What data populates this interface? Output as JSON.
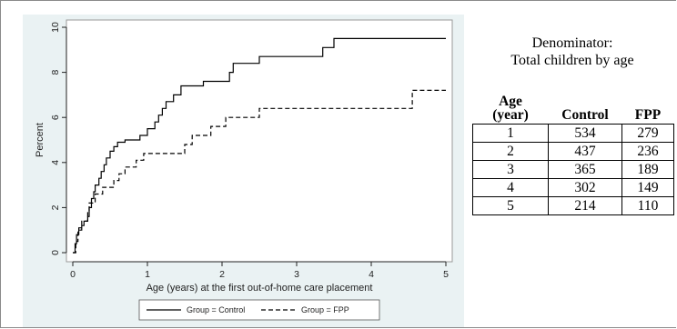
{
  "chart_data": {
    "type": "line",
    "xlabel": "Age (years) at the first out-of-home care placement",
    "ylabel": "Percent",
    "xlim": [
      0,
      5
    ],
    "ylim": [
      0,
      10
    ],
    "x_ticks": [
      0,
      1,
      2,
      3,
      4,
      5
    ],
    "y_ticks": [
      0,
      2,
      4,
      6,
      8,
      10
    ],
    "step": true,
    "grid": false,
    "legend_position": "bottom",
    "series": [
      {
        "name": "Group = Control",
        "line_style": "solid",
        "color": "#000000",
        "points": [
          [
            0,
            0
          ],
          [
            0.03,
            0.4
          ],
          [
            0.05,
            0.8
          ],
          [
            0.08,
            1.1
          ],
          [
            0.12,
            1.2
          ],
          [
            0.15,
            1.4
          ],
          [
            0.2,
            1.6
          ],
          [
            0.22,
            2.0
          ],
          [
            0.25,
            2.4
          ],
          [
            0.28,
            2.7
          ],
          [
            0.3,
            3.0
          ],
          [
            0.35,
            3.3
          ],
          [
            0.38,
            3.6
          ],
          [
            0.42,
            3.9
          ],
          [
            0.45,
            4.2
          ],
          [
            0.5,
            4.5
          ],
          [
            0.55,
            4.7
          ],
          [
            0.6,
            4.9
          ],
          [
            0.7,
            5.0
          ],
          [
            0.9,
            5.2
          ],
          [
            1.0,
            5.5
          ],
          [
            1.1,
            5.8
          ],
          [
            1.15,
            6.1
          ],
          [
            1.2,
            6.4
          ],
          [
            1.25,
            6.7
          ],
          [
            1.35,
            7.0
          ],
          [
            1.45,
            7.4
          ],
          [
            1.75,
            7.6
          ],
          [
            2.1,
            8.0
          ],
          [
            2.15,
            8.4
          ],
          [
            2.5,
            8.7
          ],
          [
            3.35,
            9.1
          ],
          [
            3.5,
            9.5
          ],
          [
            5.0,
            9.5
          ]
        ]
      },
      {
        "name": "Group = FPP",
        "line_style": "dashed",
        "color": "#000000",
        "points": [
          [
            0,
            0
          ],
          [
            0.04,
            0.5
          ],
          [
            0.07,
            1.0
          ],
          [
            0.12,
            1.4
          ],
          [
            0.2,
            1.8
          ],
          [
            0.22,
            2.2
          ],
          [
            0.3,
            2.6
          ],
          [
            0.4,
            2.9
          ],
          [
            0.55,
            3.2
          ],
          [
            0.62,
            3.5
          ],
          [
            0.7,
            3.8
          ],
          [
            0.85,
            4.1
          ],
          [
            0.95,
            4.4
          ],
          [
            1.5,
            4.8
          ],
          [
            1.6,
            5.2
          ],
          [
            1.85,
            5.6
          ],
          [
            2.05,
            6.0
          ],
          [
            2.5,
            6.4
          ],
          [
            4.55,
            7.2
          ],
          [
            5.0,
            7.2
          ]
        ]
      }
    ]
  },
  "denominator": {
    "line1": "Denominator:",
    "line2": "Total children by age"
  },
  "table": {
    "header": {
      "age_line1": "Age",
      "age_line2": "(year)",
      "control": "Control",
      "fpp": "FPP"
    },
    "rows": [
      {
        "age": "1",
        "control": "534",
        "fpp": "279"
      },
      {
        "age": "2",
        "control": "437",
        "fpp": "236"
      },
      {
        "age": "3",
        "control": "365",
        "fpp": "189"
      },
      {
        "age": "4",
        "control": "302",
        "fpp": "149"
      },
      {
        "age": "5",
        "control": "214",
        "fpp": "110"
      }
    ]
  }
}
